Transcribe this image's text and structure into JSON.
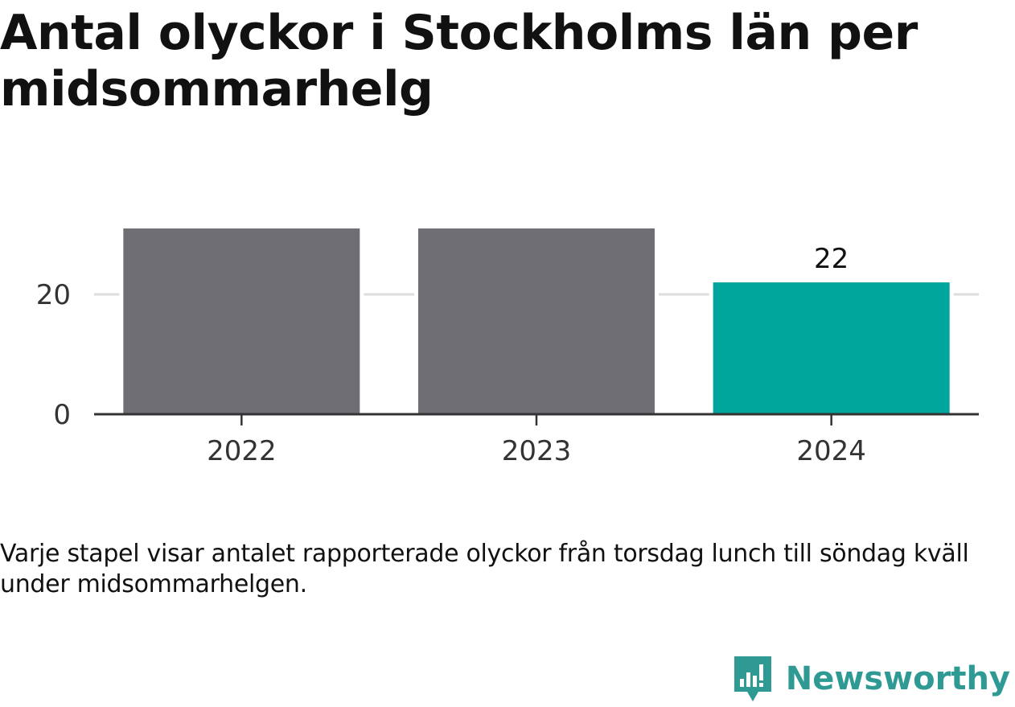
{
  "title": "Antal olyckor i Stockholms län per midsommarhelg",
  "note": "Varje stapel visar antalet rapporterade olyckor från torsdag lunch till söndag kväll under midsommarhelgen.",
  "brand": "Newsworthy",
  "colors": {
    "bar_default": "#6f6e74",
    "bar_highlight": "#00a59b",
    "brand": "#2f9a94",
    "grid": "#dddddd",
    "axis": "#333333"
  },
  "chart_data": {
    "type": "bar",
    "categories": [
      "2022",
      "2023",
      "2024"
    ],
    "values": [
      31,
      31,
      22
    ],
    "highlight": "2024",
    "data_labels": [
      "",
      "",
      "22"
    ],
    "y_ticks": [
      0,
      20
    ],
    "ylim": [
      0,
      31
    ],
    "grid": true
  }
}
